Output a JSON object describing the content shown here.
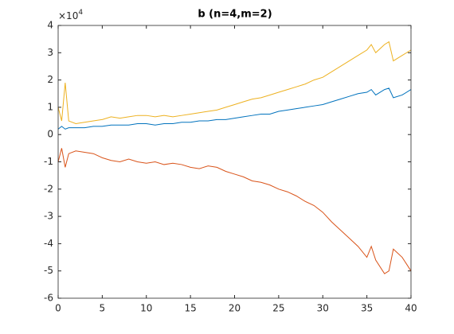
{
  "chart_data": {
    "type": "line",
    "title": "b (n=4,m=2)",
    "y_multiplier": {
      "base": "×10",
      "exponent": "4"
    },
    "x": [
      0,
      0.4,
      0.8,
      1.2,
      2,
      3,
      4,
      5,
      6,
      7,
      8,
      9,
      10,
      11,
      12,
      13,
      14,
      15,
      16,
      17,
      18,
      19,
      20,
      21,
      22,
      23,
      24,
      25,
      26,
      27,
      28,
      29,
      30,
      31,
      32,
      33,
      34,
      35,
      35.5,
      36,
      37,
      37.5,
      38,
      39,
      40
    ],
    "series": [
      {
        "color": "#0072BD",
        "values": [
          2000,
          3000,
          2000,
          2500,
          2500,
          2500,
          3000,
          3000,
          3500,
          3500,
          3500,
          4000,
          4000,
          3500,
          4000,
          4000,
          4500,
          4500,
          5000,
          5000,
          5500,
          5500,
          6000,
          6500,
          7000,
          7500,
          7500,
          8500,
          9000,
          9500,
          10000,
          10500,
          11000,
          12000,
          13000,
          14000,
          15000,
          15500,
          16500,
          14500,
          16500,
          17000,
          13500,
          14500,
          16500
        ]
      },
      {
        "color": "#D95319",
        "values": [
          -10000,
          -5000,
          -12000,
          -7000,
          -6000,
          -6500,
          -7000,
          -8500,
          -9500,
          -10000,
          -9000,
          -10000,
          -10500,
          -10000,
          -11000,
          -10500,
          -11000,
          -12000,
          -12500,
          -11500,
          -12000,
          -13500,
          -14500,
          -15500,
          -17000,
          -17500,
          -18500,
          -20000,
          -21000,
          -22500,
          -24500,
          -26000,
          -28500,
          -32000,
          -35000,
          -38000,
          -41000,
          -45000,
          -41000,
          -46000,
          -51000,
          -50000,
          -42000,
          -45000,
          -50000
        ]
      },
      {
        "color": "#EDB120",
        "values": [
          10000,
          5000,
          19000,
          5000,
          4000,
          4500,
          5000,
          5500,
          6500,
          6000,
          6500,
          7000,
          7000,
          6500,
          7000,
          6500,
          7000,
          7500,
          8000,
          8500,
          9000,
          10000,
          11000,
          12000,
          13000,
          13500,
          14500,
          15500,
          16500,
          17500,
          18500,
          20000,
          21000,
          23000,
          25000,
          27000,
          29000,
          31000,
          33000,
          30000,
          33000,
          34000,
          27000,
          29000,
          31000
        ]
      }
    ],
    "xlim": [
      0,
      40
    ],
    "xticks": [
      0,
      5,
      10,
      15,
      20,
      25,
      30,
      35,
      40
    ],
    "ylim": [
      -60000,
      40000
    ],
    "yticks": [
      {
        "value": -60000,
        "label": "-6"
      },
      {
        "value": -50000,
        "label": "-5"
      },
      {
        "value": -40000,
        "label": "-4"
      },
      {
        "value": -30000,
        "label": "-3"
      },
      {
        "value": -20000,
        "label": "-2"
      },
      {
        "value": -10000,
        "label": "-1"
      },
      {
        "value": 0,
        "label": "0"
      },
      {
        "value": 10000,
        "label": "1"
      },
      {
        "value": 20000,
        "label": "2"
      },
      {
        "value": 30000,
        "label": "3"
      },
      {
        "value": 40000,
        "label": "4"
      }
    ],
    "grid": false
  }
}
